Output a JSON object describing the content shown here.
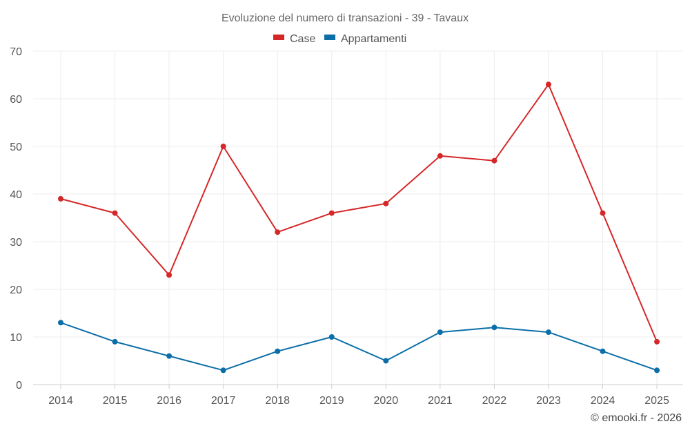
{
  "chart_data": {
    "type": "line",
    "title": "Evoluzione del numero di transazioni - 39 - Tavaux",
    "categories": [
      "2014",
      "2015",
      "2016",
      "2017",
      "2018",
      "2019",
      "2020",
      "2021",
      "2022",
      "2023",
      "2024",
      "2025"
    ],
    "series": [
      {
        "name": "Case",
        "color": "#d62728",
        "values": [
          39,
          36,
          23,
          50,
          32,
          36,
          38,
          48,
          47,
          63,
          36,
          9
        ]
      },
      {
        "name": "Appartamenti",
        "color": "#0b6ea8",
        "values": [
          13,
          9,
          6,
          3,
          7,
          10,
          5,
          11,
          12,
          11,
          7,
          3
        ]
      }
    ],
    "ylim": [
      0,
      70
    ],
    "yticks": [
      0,
      10,
      20,
      30,
      40,
      50,
      60,
      70
    ],
    "xlabel": "",
    "ylabel": "",
    "grid": true,
    "legend_position": "top-center"
  },
  "credit": "© emooki.fr - 2026"
}
